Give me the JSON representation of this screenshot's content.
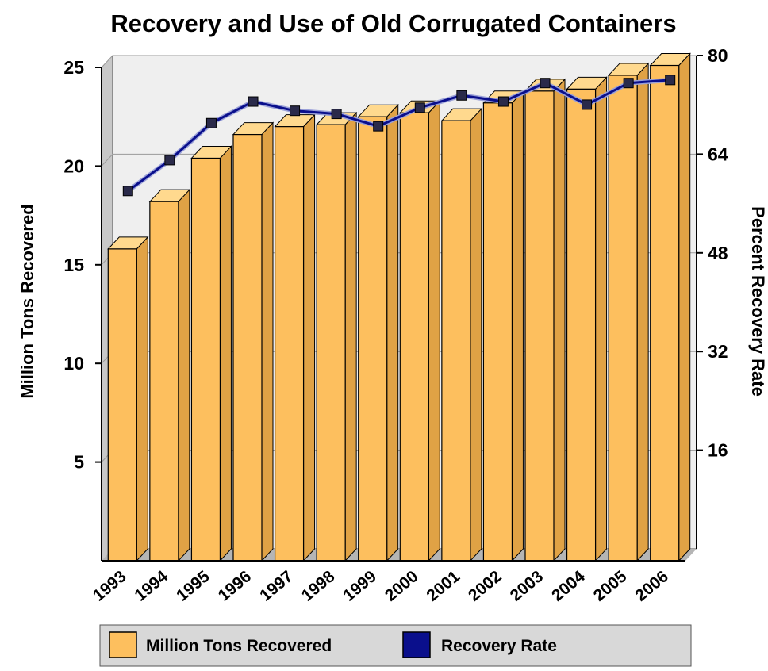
{
  "chart_data": {
    "type": "bar",
    "title": "Recovery and Use of Old Corrugated Containers",
    "xlabel": "",
    "ylabel": "Million Tons Recovered",
    "y2label": "Percent Recovery Rate",
    "categories": [
      "1993",
      "1994",
      "1995",
      "1996",
      "1997",
      "1998",
      "1999",
      "2000",
      "2001",
      "2002",
      "2003",
      "2004",
      "2005",
      "2006"
    ],
    "ylim": [
      0,
      25
    ],
    "y2lim": [
      0,
      80
    ],
    "yticks": [
      "5",
      "10",
      "15",
      "20",
      "25"
    ],
    "y2ticks": [
      "16",
      "32",
      "48",
      "64",
      "80"
    ],
    "grid": true,
    "legend_position": "bottom",
    "series": [
      {
        "name": "Million Tons Recovered",
        "type": "bar",
        "axis": "left",
        "color": "#FDBF5E",
        "values": [
          15.8,
          18.2,
          20.4,
          21.6,
          22.0,
          22.1,
          22.5,
          22.7,
          22.3,
          23.2,
          23.8,
          23.9,
          24.6,
          25.1
        ]
      },
      {
        "name": "Recovery Rate",
        "type": "line",
        "axis": "right",
        "color": "#0A0F8C",
        "values": [
          59.0,
          64.0,
          70.0,
          73.5,
          72.0,
          71.5,
          69.5,
          72.5,
          74.5,
          73.5,
          76.5,
          73.0,
          76.5,
          77.0
        ]
      }
    ]
  }
}
